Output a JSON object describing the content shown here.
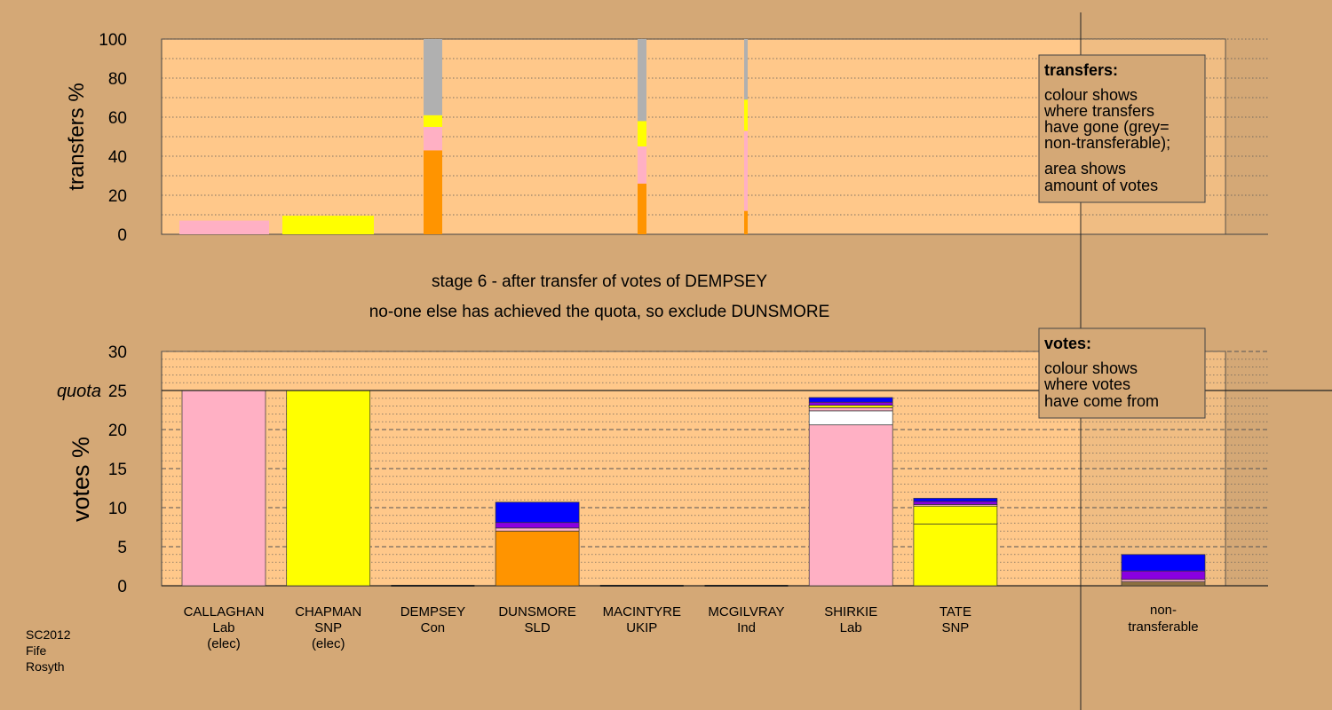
{
  "chart_data": [
    {
      "type": "bar",
      "ylabel": "transfers %",
      "ylim": [
        0,
        100
      ],
      "yticks": [
        0,
        20,
        40,
        60,
        80,
        100
      ],
      "note": "stacked bars showing where transfers went at each stage; bar width shows amount of votes",
      "bars": [
        {
          "stage": 1,
          "segments": [
            {
              "color": "pink",
              "value": 7
            }
          ]
        },
        {
          "stage": 2,
          "segments": [
            {
              "color": "yellow",
              "value": 9.5
            }
          ]
        },
        {
          "stage": 3,
          "segments": [
            {
              "color": "orange",
              "value": 43
            },
            {
              "color": "pink",
              "value": 12
            },
            {
              "color": "yellow",
              "value": 6
            },
            {
              "color": "grey",
              "value": 39
            }
          ]
        },
        {
          "stage": 5,
          "segments": [
            {
              "color": "orange",
              "value": 26
            },
            {
              "color": "pink",
              "value": 19
            },
            {
              "color": "yellow",
              "value": 13
            },
            {
              "color": "grey",
              "value": 42
            }
          ]
        },
        {
          "stage": 6,
          "segments": [
            {
              "color": "orange",
              "value": 12
            },
            {
              "color": "pink",
              "value": 41
            },
            {
              "color": "yellow",
              "value": 16
            },
            {
              "color": "grey",
              "value": 31
            }
          ]
        }
      ],
      "legend": {
        "title": "transfers:",
        "lines1": [
          "colour shows",
          "where transfers",
          "have gone (grey=",
          "non-transferable);"
        ],
        "lines2": [
          "area shows",
          "amount of votes"
        ]
      }
    },
    {
      "type": "bar",
      "ylabel": "votes %",
      "ylim": [
        0,
        30
      ],
      "yticks": [
        0,
        5,
        10,
        15,
        20,
        25,
        30
      ],
      "quota": 25,
      "quota_label": "quota",
      "candidates": [
        {
          "name": "CALLAGHAN",
          "party": "Lab",
          "status": "(elec)",
          "segments": [
            {
              "color": "pink",
              "value": 25
            }
          ]
        },
        {
          "name": "CHAPMAN",
          "party": "SNP",
          "status": "(elec)",
          "segments": [
            {
              "color": "yellow",
              "value": 25
            }
          ]
        },
        {
          "name": "DEMPSEY",
          "party": "Con",
          "status": "",
          "segments": []
        },
        {
          "name": "DUNSMORE",
          "party": "SLD",
          "status": "",
          "segments": [
            {
              "color": "orange",
              "value": 7.0
            },
            {
              "color": "pink",
              "value": 0.4
            },
            {
              "color": "purple",
              "value": 0.7
            },
            {
              "color": "blue",
              "value": 2.6
            }
          ]
        },
        {
          "name": "MACINTYRE",
          "party": "UKIP",
          "status": "",
          "segments": []
        },
        {
          "name": "MCGILVRAY",
          "party": "Ind",
          "status": "",
          "segments": []
        },
        {
          "name": "SHIRKIE",
          "party": "Lab",
          "status": "",
          "segments": [
            {
              "color": "pink",
              "value": 20.6
            },
            {
              "color": "white",
              "value": 1.8
            },
            {
              "color": "pink",
              "value": 0.4
            },
            {
              "color": "yellow",
              "value": 0.3
            },
            {
              "color": "purple",
              "value": 0.4
            },
            {
              "color": "blue",
              "value": 0.6
            }
          ]
        },
        {
          "name": "TATE",
          "party": "SNP",
          "status": "",
          "segments": [
            {
              "color": "yellow",
              "value": 7.9
            },
            {
              "color": "yellow",
              "value": 2.3
            },
            {
              "color": "pink",
              "value": 0.2
            },
            {
              "color": "purple",
              "value": 0.4
            },
            {
              "color": "blue",
              "value": 0.4
            }
          ]
        }
      ],
      "nontransferable": {
        "label_line1": "non-",
        "label_line2": "transferable",
        "segments": [
          {
            "color": "olive",
            "value": 0.5
          },
          {
            "color": "pink",
            "value": 0.3
          },
          {
            "color": "purple",
            "value": 1.1
          },
          {
            "color": "blue",
            "value": 2.1
          }
        ]
      },
      "legend": {
        "title": "votes:",
        "lines": [
          "colour shows",
          "where votes",
          "have come from"
        ]
      }
    }
  ],
  "stage_title": "stage 6 - after transfer of votes of DEMPSEY",
  "stage_subtitle": "no-one else has achieved the quota, so exclude DUNSMORE",
  "footer": [
    "SC2012",
    "Fife",
    "Rosyth"
  ],
  "colors": {
    "background": "#d4a876",
    "plot_bg": "#ffc88a",
    "pink": "#ffb0c4",
    "yellow": "#ffff00",
    "orange": "#ff9400",
    "grey": "#b0b0b0",
    "blue": "#0000ff",
    "purple": "#8a00e0",
    "white": "#ffffff",
    "olive": "#8c7040"
  }
}
